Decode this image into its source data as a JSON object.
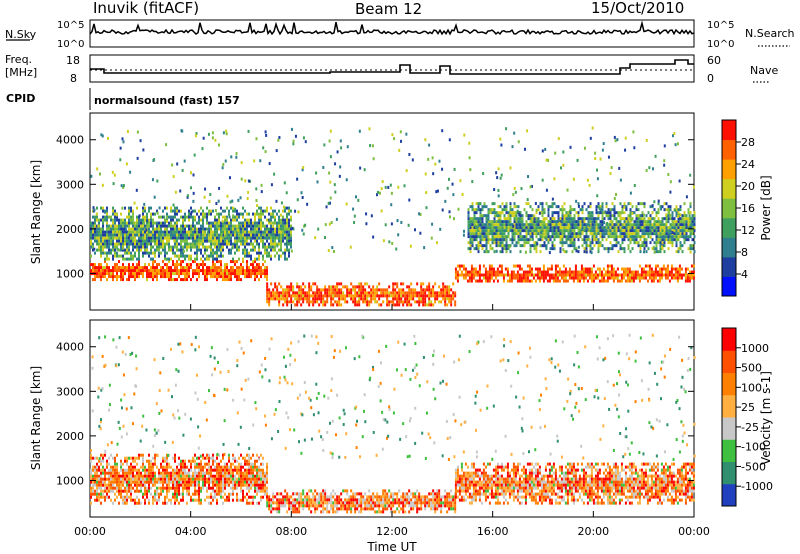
{
  "header": {
    "station": "Inuvik (fitACF)",
    "beam": "Beam 12",
    "date": "15/Oct/2010"
  },
  "status_panels": {
    "nsky_label": "N.Sky",
    "nsearch_label": "N.Search",
    "noise_ticks_left": [
      "10^5",
      "10^0"
    ],
    "noise_ticks_right": [
      "10^5",
      "10^0"
    ],
    "freq_label_top": "Freq.",
    "freq_label_bottom": "[MHz]",
    "freq_ticks": [
      "18",
      "8"
    ],
    "nave_label": "Nave",
    "nave_ticks": [
      "60",
      "0"
    ],
    "cpid_label": "CPID",
    "cpid_value": "normalsound (fast) 157"
  },
  "chart_data": [
    {
      "type": "heatmap",
      "panel": "power",
      "ylabel": "Slant Range [km]",
      "ylim": [
        180,
        4600
      ],
      "yticks": [
        "1000",
        "2000",
        "3000",
        "4000"
      ],
      "colorbar_label": "Power [dB]",
      "colorbar_ticks": [
        "28",
        "24",
        "20",
        "16",
        "12",
        "8",
        "4"
      ],
      "colors": [
        "#0010ff",
        "#1f3fa0",
        "#2f7f8f",
        "#3f9f5f",
        "#7fbf3f",
        "#cfcf20",
        "#ffa000",
        "#ff6000",
        "#ff1000"
      ],
      "bands": [
        {
          "start": "00:00",
          "end": "07:00",
          "range_km": [
            850,
            1300
          ],
          "level": "high"
        },
        {
          "start": "07:00",
          "end": "14:30",
          "range_km": [
            300,
            800
          ],
          "level": "high"
        },
        {
          "start": "14:30",
          "end": "24:00",
          "range_km": [
            800,
            1200
          ],
          "level": "high"
        },
        {
          "start": "00:00",
          "end": "08:00",
          "range_km": [
            1300,
            2500
          ],
          "level": "medium"
        },
        {
          "start": "15:00",
          "end": "24:00",
          "range_km": [
            1500,
            2600
          ],
          "level": "medium"
        }
      ]
    },
    {
      "type": "heatmap",
      "panel": "velocity",
      "xlabel": "Time UT",
      "ylabel": "Slant Range [km]",
      "ylim": [
        180,
        4600
      ],
      "yticks": [
        "1000",
        "2000",
        "3000",
        "4000"
      ],
      "xticks": [
        "00:00",
        "04:00",
        "08:00",
        "12:00",
        "16:00",
        "20:00",
        "00:00"
      ],
      "colorbar_label": "Velocity [m s-1]",
      "colorbar_ticks": [
        "1000",
        "500",
        "100",
        "25",
        "-25",
        "-100",
        "-500",
        "-1000"
      ],
      "colors": [
        "#2040c0",
        "#2f8f6f",
        "#3fbf3f",
        "#c8c8c8",
        "#ffb040",
        "#ff8000",
        "#ff5000",
        "#ff0000"
      ],
      "bands": [
        {
          "start": "00:00",
          "end": "07:00",
          "range_km": [
            500,
            1600
          ],
          "level": "negative"
        },
        {
          "start": "07:00",
          "end": "14:30",
          "range_km": [
            300,
            800
          ],
          "level": "negative"
        },
        {
          "start": "14:30",
          "end": "24:00",
          "range_km": [
            500,
            1400
          ],
          "level": "negative"
        }
      ]
    }
  ]
}
